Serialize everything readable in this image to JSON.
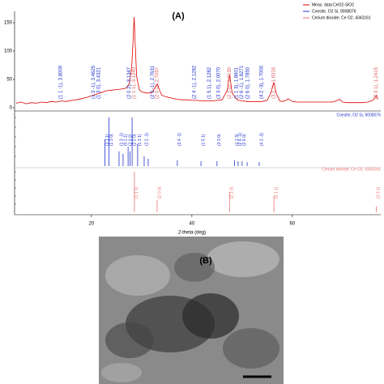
{
  "chart_data": [
    {
      "type": "line",
      "name": "Meas. data:CeO2-SiO2",
      "color": "#e00000",
      "panel_label": "(A)",
      "xlabel": "2-theta (deg)",
      "xlim": [
        4.7,
        77.6
      ],
      "xticks": [
        20,
        40,
        60
      ],
      "ylim": [
        0,
        170
      ],
      "yticks": [
        0,
        50,
        100,
        150
      ],
      "x": [
        5,
        6,
        7,
        8,
        9,
        10,
        11,
        12,
        13,
        14,
        15,
        16,
        17,
        18,
        19,
        20,
        21,
        22,
        23,
        24,
        25,
        26,
        27,
        27.5,
        28,
        28.3,
        28.5,
        28.7,
        29,
        29.5,
        30,
        31,
        32,
        32.6,
        33.1,
        33.6,
        34,
        35,
        36,
        37,
        38,
        39,
        40,
        41,
        42,
        43,
        44,
        45,
        46,
        47,
        47.5,
        48,
        49,
        50,
        51,
        52,
        53,
        54,
        55,
        55.8,
        56.3,
        56.8,
        57.5,
        58,
        59,
        59.1,
        60,
        61,
        62,
        63,
        64,
        65,
        66,
        67,
        68,
        69,
        69.4,
        70,
        71,
        72,
        73,
        74,
        75,
        76,
        76.7,
        77
      ],
      "values": [
        8,
        10,
        7,
        9,
        8,
        10,
        9,
        11,
        10,
        12,
        11,
        13,
        14,
        16,
        18,
        21,
        24,
        27,
        30,
        31,
        32,
        33,
        35,
        42,
        70,
        120,
        160,
        115,
        55,
        32,
        28,
        26,
        26,
        35,
        42,
        30,
        22,
        19,
        17,
        15,
        14,
        14,
        13,
        13,
        12,
        12,
        12,
        13,
        14,
        30,
        58,
        26,
        14,
        12,
        11,
        11,
        11,
        11,
        13,
        28,
        45,
        25,
        12,
        11,
        14,
        16,
        11,
        10,
        10,
        10,
        10,
        10,
        10,
        10,
        10,
        13,
        15,
        10,
        9,
        9,
        9,
        9,
        10,
        13,
        21,
        15
      ],
      "peak_labels": [
        {
          "x": 13.9,
          "label": "(1 1 -1), 3.8009",
          "color": "#2233cc"
        },
        {
          "x": 20.4,
          "label": "(1 3 -1), 3.4625",
          "color": "#2233cc"
        },
        {
          "x": 21.5,
          "label": "(1 3 0), 3.4321",
          "color": "#2233cc"
        },
        {
          "x": 27.5,
          "label": "(2 0 2), 3.1347",
          "color": "#2233cc"
        },
        {
          "x": 28.5,
          "label": "(1 1 1), 3.1240",
          "color": "#e06060"
        },
        {
          "x": 32.2,
          "label": "(2 3 -1), 2.7631",
          "color": "#2233cc"
        },
        {
          "x": 33.1,
          "label": "(2 0 0), 2.7057",
          "color": "#e06060"
        },
        {
          "x": 40.5,
          "label": "(2 4 -1), 2.1282",
          "color": "#2233cc"
        },
        {
          "x": 43.5,
          "label": "(1 5 1), 2.1282",
          "color": "#2233cc"
        },
        {
          "x": 45.3,
          "label": "(3 3 0), 2.0070",
          "color": "#2233cc"
        },
        {
          "x": 47.5,
          "label": "(2 2 0), 1.9130",
          "color": "#e06060"
        },
        {
          "x": 48.9,
          "label": "(1 1 3), 1.8601",
          "color": "#2233cc"
        },
        {
          "x": 49.9,
          "label": "(2 6 -1), 1.8271",
          "color": "#2233cc"
        },
        {
          "x": 51.1,
          "label": "(2 6 0), 1.7850",
          "color": "#2233cc"
        },
        {
          "x": 53.9,
          "label": "(4 2 -3), 1.7000",
          "color": "#2233cc"
        },
        {
          "x": 56.3,
          "label": "(3 1 1), 1.6316",
          "color": "#e06060"
        },
        {
          "x": 76.7,
          "label": "(3 3 1), 1.2415",
          "color": "#e06060"
        }
      ]
    },
    {
      "type": "stick",
      "name": "Coesite, O2 Si, 9008076",
      "color": "#2233cc",
      "ylim": [
        0,
        100
      ],
      "x": [
        22.7,
        23.5,
        25.5,
        26.3,
        27.3,
        27.7,
        28.1,
        29.2,
        30.5,
        31.3,
        37.1,
        41.8,
        45.0,
        48.5,
        49.2,
        50.0,
        51.0,
        53.4
      ],
      "values": [
        55,
        100,
        30,
        25,
        40,
        30,
        100,
        45,
        20,
        15,
        12,
        10,
        10,
        12,
        10,
        10,
        8,
        8
      ],
      "labels": [
        "(1 1 1)",
        "(1 3 0)",
        "(1 3 -1)",
        "(0 2 1)",
        "(2 0 2)",
        null,
        "(2 2 0)",
        "(1 3 1)",
        "(2 2 -1)",
        null,
        "(2 4 -1)",
        "(1 5 1)",
        "(3 3 0)",
        "(1 1 3)",
        "(2 6 -1)",
        "(2 6 0)",
        null,
        "(4 2 -3)"
      ]
    },
    {
      "type": "stick",
      "name": "Cerium dioxide, Ce O2, 4343161",
      "color": "#f07070",
      "ylim": [
        0,
        100
      ],
      "x": [
        28.55,
        33.08,
        47.48,
        56.33,
        76.7
      ],
      "values": [
        100,
        30,
        50,
        40,
        15
      ],
      "labels": [
        "(1 1 1)",
        "(2 0 0)",
        "(2 2 0)",
        "(3 1 1)",
        "(3 3 1)"
      ]
    }
  ],
  "image": {
    "label": "(B)"
  }
}
